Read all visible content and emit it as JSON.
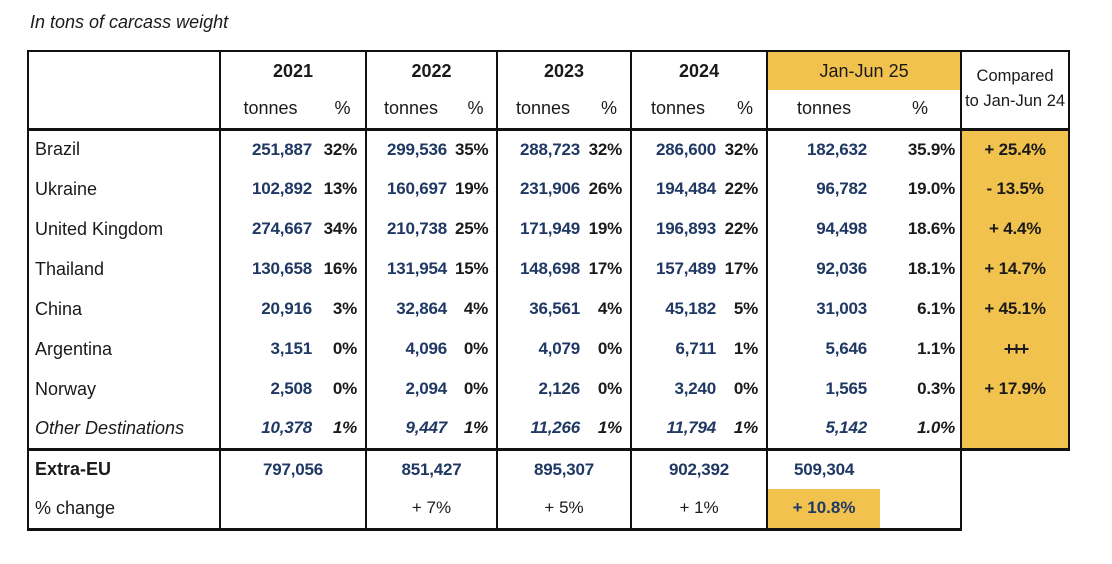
{
  "title": "In tons of carcass weight",
  "colors": {
    "highlight_yellow": "#F1C24D",
    "number_navy": "#1F3864",
    "text_black": "#1A1A1A",
    "border_black": "#111111"
  },
  "header": {
    "years": [
      "2021",
      "2022",
      "2023",
      "2024"
    ],
    "period_label": "Jan-Jun 25",
    "tonnes_label": "tonnes",
    "percent_label": "%",
    "compared_line1": "Compared",
    "compared_line2": "to Jan-Jun 24"
  },
  "rows": [
    {
      "name": "Brazil",
      "italic": false,
      "t2021": "251,887",
      "p2021": "32%",
      "t2022": "299,536",
      "p2022": "35%",
      "t2023": "288,723",
      "p2023": "32%",
      "t2024": "286,600",
      "p2024": "32%",
      "t25": "182,632",
      "p25": "35.9%",
      "compared": "+ 25.4%"
    },
    {
      "name": "Ukraine",
      "italic": false,
      "t2021": "102,892",
      "p2021": "13%",
      "t2022": "160,697",
      "p2022": "19%",
      "t2023": "231,906",
      "p2023": "26%",
      "t2024": "194,484",
      "p2024": "22%",
      "t25": "96,782",
      "p25": "19.0%",
      "compared": "- 13.5%"
    },
    {
      "name": "United Kingdom",
      "italic": false,
      "t2021": "274,667",
      "p2021": "34%",
      "t2022": "210,738",
      "p2022": "25%",
      "t2023": "171,949",
      "p2023": "19%",
      "t2024": "196,893",
      "p2024": "22%",
      "t25": "94,498",
      "p25": "18.6%",
      "compared": "+ 4.4%"
    },
    {
      "name": "Thailand",
      "italic": false,
      "t2021": "130,658",
      "p2021": "16%",
      "t2022": "131,954",
      "p2022": "15%",
      "t2023": "148,698",
      "p2023": "17%",
      "t2024": "157,489",
      "p2024": "17%",
      "t25": "92,036",
      "p25": "18.1%",
      "compared": "+ 14.7%"
    },
    {
      "name": "China",
      "italic": false,
      "t2021": "20,916",
      "p2021": "3%",
      "t2022": "32,864",
      "p2022": "4%",
      "t2023": "36,561",
      "p2023": "4%",
      "t2024": "45,182",
      "p2024": "5%",
      "t25": "31,003",
      "p25": "6.1%",
      "compared": "+ 45.1%"
    },
    {
      "name": "Argentina",
      "italic": false,
      "t2021": "3,151",
      "p2021": "0%",
      "t2022": "4,096",
      "p2022": "0%",
      "t2023": "4,079",
      "p2023": "0%",
      "t2024": "6,711",
      "p2024": "1%",
      "t25": "5,646",
      "p25": "1.1%",
      "compared": "+++"
    },
    {
      "name": "Norway",
      "italic": false,
      "t2021": "2,508",
      "p2021": "0%",
      "t2022": "2,094",
      "p2022": "0%",
      "t2023": "2,126",
      "p2023": "0%",
      "t2024": "3,240",
      "p2024": "0%",
      "t25": "1,565",
      "p25": "0.3%",
      "compared": "+ 17.9%"
    },
    {
      "name": "Other Destinations",
      "italic": true,
      "t2021": "10,378",
      "p2021": "1%",
      "t2022": "9,447",
      "p2022": "1%",
      "t2023": "11,266",
      "p2023": "1%",
      "t2024": "11,794",
      "p2024": "1%",
      "t25": "5,142",
      "p25": "1.0%",
      "compared": ""
    }
  ],
  "totals_row": {
    "name": "Extra-EU",
    "values": [
      "797,056",
      "851,427",
      "895,307",
      "902,392",
      "509,304"
    ]
  },
  "pct_change_row": {
    "name": "% change",
    "values": [
      "",
      "+ 7%",
      "+ 5%",
      "+ 1%",
      "+ 10.8%"
    ]
  }
}
